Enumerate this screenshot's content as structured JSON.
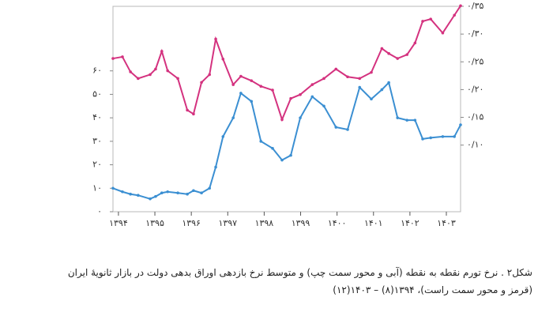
{
  "chart_data": {
    "type": "line",
    "caption_lines": [
      "شکل۲ . نرخ تورم نقطه به نقطه (آبی و محور سمت چپ) و متوسط نرخ بازدهی اوراق بدهی دولت در بازار ثانویهٔ ایران",
      "(قرمز و محور سمت راست)، ۱۳۹۴(۸) – ۱۴۰۳(۱۲)"
    ],
    "x": [
      1393.85,
      1394.11,
      1394.33,
      1394.54,
      1394.87,
      1395.02,
      1395.19,
      1395.35,
      1395.63,
      1395.89,
      1396.06,
      1396.28,
      1396.5,
      1396.67,
      1396.87,
      1397.15,
      1397.36,
      1397.65,
      1397.91,
      1398.23,
      1398.49,
      1398.73,
      1398.99,
      1399.32,
      1399.64,
      1399.97,
      1400.29,
      1400.62,
      1400.94,
      1401.23,
      1401.42,
      1401.66,
      1401.92,
      1402.14,
      1402.35,
      1402.57,
      1402.9,
      1403.22,
      1403.39
    ],
    "series": [
      {
        "color": "#3b8fd2",
        "values": [
          10,
          8.5,
          7.5,
          7,
          5.5,
          6.5,
          8,
          8.5,
          8,
          7.5,
          9,
          8,
          10,
          19,
          32,
          40,
          50.5,
          47,
          30,
          27,
          22,
          24,
          40,
          49,
          45,
          36,
          35,
          53,
          48,
          52,
          55,
          40,
          39,
          39,
          31,
          31.5,
          32,
          32,
          37
        ]
      },
      {
        "color": "#d4327f",
        "axis": "y2",
        "values": [
          0.256,
          0.259,
          0.232,
          0.22,
          0.227,
          0.237,
          0.269,
          0.234,
          0.22,
          0.163,
          0.156,
          0.213,
          0.227,
          0.291,
          0.255,
          0.209,
          0.224,
          0.216,
          0.206,
          0.199,
          0.146,
          0.184,
          0.191,
          0.209,
          0.22,
          0.237,
          0.223,
          0.22,
          0.231,
          0.274,
          0.265,
          0.256,
          0.263,
          0.284,
          0.323,
          0.327,
          0.302,
          0.334,
          0.351
        ]
      }
    ],
    "xlim": [
      1393.85,
      1403.39
    ],
    "xticks": [
      {
        "value": 1394,
        "label": "۱۳۹۴"
      },
      {
        "value": 1395,
        "label": "۱۳۹۵"
      },
      {
        "value": 1396,
        "label": "۱۳۹۶"
      },
      {
        "value": 1397,
        "label": "۱۳۹۷"
      },
      {
        "value": 1398,
        "label": "۱۳۹۸"
      },
      {
        "value": 1399,
        "label": "۱۳۹۹"
      },
      {
        "value": 1400,
        "label": "۱۴۰۰"
      },
      {
        "value": 1401,
        "label": "۱۴۰۱"
      },
      {
        "value": 1402,
        "label": "۱۴۰۲"
      },
      {
        "value": 1403,
        "label": "۱۴۰۳"
      }
    ],
    "ylim": [
      0,
      87.5
    ],
    "yticks": [
      {
        "value": 0,
        "label": "۰"
      },
      {
        "value": 10,
        "label": "۱۰"
      },
      {
        "value": 20,
        "label": "۲۰"
      },
      {
        "value": 30,
        "label": "۳۰"
      },
      {
        "value": 40,
        "label": "۴۰"
      },
      {
        "value": 50,
        "label": "۵۰"
      },
      {
        "value": 60,
        "label": "۶۰"
      }
    ],
    "y2lim": [
      -0.02,
      0.35
    ],
    "y2ticks": [
      {
        "value": 0.1,
        "label": "۰/۱۰"
      },
      {
        "value": 0.15,
        "label": "۰/۱۵"
      },
      {
        "value": 0.2,
        "label": "۰/۲۰"
      },
      {
        "value": 0.25,
        "label": "۰/۲۵"
      },
      {
        "value": 0.3,
        "label": "۰/۳۰"
      },
      {
        "value": 0.35,
        "label": "۰/۳۵"
      }
    ]
  }
}
